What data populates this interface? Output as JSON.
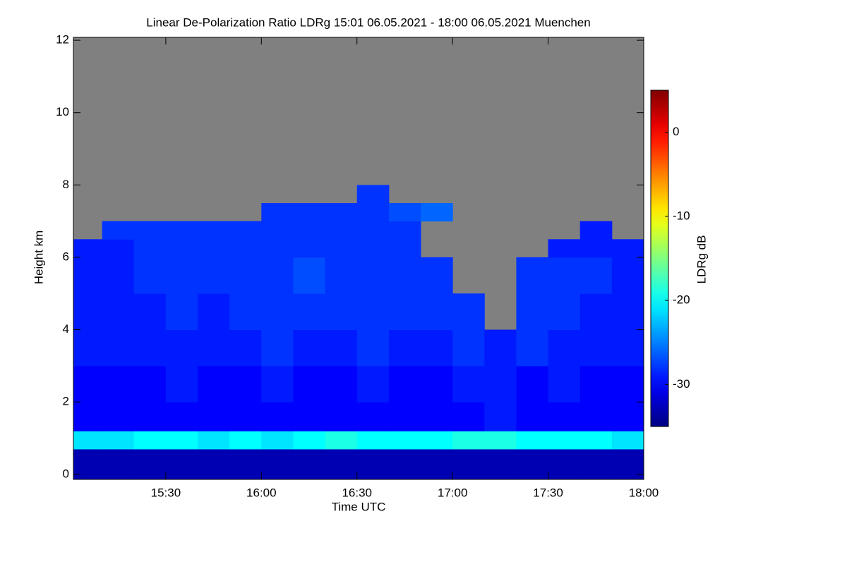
{
  "chart_data": {
    "type": "heatmap",
    "title": "Linear De-Polarization Ratio LDRg   15:01 06.05.2021 - 18:00 06.05.2021 Muenchen",
    "x_label": "Time UTC",
    "y_label": "Height km",
    "colorbar_label": "LDRg dB",
    "colormap": "jet",
    "missing_color": "#808080",
    "x_bins": [
      15.0167,
      15.1667,
      15.3333,
      15.5,
      15.6667,
      15.8333,
      16,
      16.1667,
      16.3333,
      16.5,
      16.6667,
      16.8333,
      17,
      17.1667,
      17.3333,
      17.5,
      17.6667,
      17.8333,
      18
    ],
    "y_bins": [
      -0.14,
      0.7,
      1.2,
      2,
      3,
      4,
      5,
      6,
      6.5,
      7,
      7.5,
      8,
      12.08
    ],
    "values": [
      [
        -33,
        -33,
        -33,
        -33,
        -33,
        -33,
        -33,
        -33,
        -33,
        -33,
        -33,
        -33,
        -33,
        -33,
        -33,
        -33,
        -33,
        -33
      ],
      [
        -21,
        -21,
        -20,
        -20,
        -21,
        -20,
        -21,
        -20,
        -19,
        -20,
        -20,
        -20,
        -19,
        -19,
        -20,
        -20,
        -20,
        -21
      ],
      [
        -30,
        -30,
        -30,
        -30,
        -30,
        -30,
        -30,
        -30,
        -30,
        -30,
        -30,
        -30,
        -30,
        -29,
        -30,
        -30,
        -30,
        -30
      ],
      [
        -30,
        -30,
        -30,
        -29,
        -30,
        -30,
        -29,
        -30,
        -30,
        -29,
        -30,
        -30,
        -29,
        -29,
        -30,
        -29,
        -30,
        -30
      ],
      [
        -29,
        -29,
        -29,
        -29,
        -29,
        -29,
        -28,
        -29,
        -29,
        -28,
        -29,
        -29,
        -28,
        -29,
        -28,
        -29,
        -29,
        -29
      ],
      [
        -29,
        -29,
        -29,
        -28,
        -29,
        -28,
        -28,
        -28,
        -28,
        -28,
        -28,
        -28,
        -28,
        null,
        -28,
        -28,
        -29,
        -29
      ],
      [
        -29,
        -29,
        -28,
        -28,
        -28,
        -28,
        -28,
        -27,
        -28,
        -28,
        -28,
        -28,
        null,
        null,
        -28,
        -28,
        -28,
        -29
      ],
      [
        -29,
        -29,
        -28,
        -28,
        -28,
        -28,
        -28,
        -28,
        -28,
        -28,
        -28,
        null,
        null,
        null,
        null,
        -29,
        -29,
        -29
      ],
      [
        null,
        -28,
        -28,
        -28,
        -28,
        -28,
        -28,
        -28,
        -28,
        -28,
        -28,
        null,
        null,
        null,
        null,
        null,
        -29,
        null
      ],
      [
        null,
        null,
        null,
        null,
        null,
        null,
        -28,
        -28,
        -28,
        -28,
        -27,
        -26,
        null,
        null,
        null,
        null,
        null,
        null
      ],
      [
        null,
        null,
        null,
        null,
        null,
        null,
        null,
        null,
        null,
        -28,
        null,
        null,
        null,
        null,
        null,
        null,
        null,
        null
      ],
      [
        null,
        null,
        null,
        null,
        null,
        null,
        null,
        null,
        null,
        null,
        null,
        null,
        null,
        null,
        null,
        null,
        null,
        null
      ]
    ],
    "xlim": [
      15.0167,
      18
    ],
    "ylim": [
      -0.14,
      12.08
    ],
    "xticks": [
      {
        "value": 15.5,
        "label": "15:30"
      },
      {
        "value": 16,
        "label": "16:00"
      },
      {
        "value": 16.5,
        "label": "16:30"
      },
      {
        "value": 17,
        "label": "17:00"
      },
      {
        "value": 17.5,
        "label": "17:30"
      },
      {
        "value": 18,
        "label": "18:00"
      }
    ],
    "yticks": [
      0,
      2,
      4,
      6,
      8,
      10,
      12
    ],
    "clim": [
      -35,
      5
    ],
    "cticks": [
      0,
      -10,
      -20,
      -30
    ]
  }
}
